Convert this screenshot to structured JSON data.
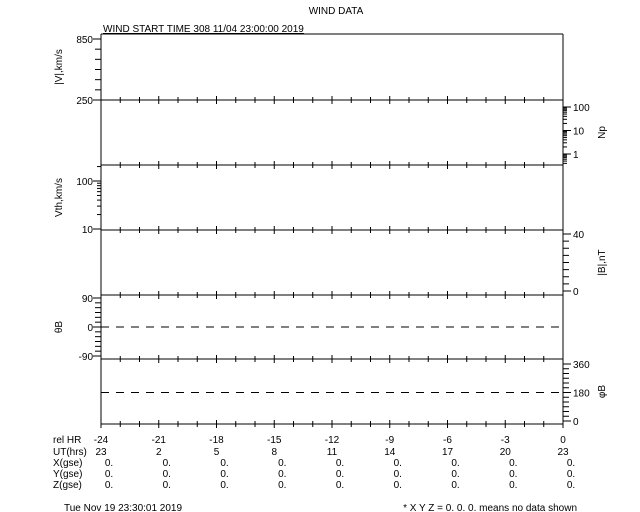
{
  "title": "WIND DATA",
  "start_time_label": "WIND START TIME 308 11/04 23:00:00 2019",
  "footer_timestamp": "Tue Nov 19 23:30:01 2019",
  "footer_note": "* X Y Z = 0. 0. 0. means no data shown",
  "chart_data": [
    {
      "type": "line",
      "ylabel": "|V|,km/s",
      "axis_side": "left",
      "scale": "linear",
      "ylim": [
        250,
        850
      ],
      "tick_labels": [
        "850",
        "250"
      ],
      "tick_values": [
        850,
        250
      ],
      "minor_step": 100,
      "series": []
    },
    {
      "type": "line",
      "ylabel": "Np",
      "axis_side": "right",
      "scale": "log",
      "ylim": [
        1,
        100
      ],
      "tick_labels": [
        "100",
        "10",
        "1"
      ],
      "tick_values": [
        100,
        10,
        1
      ],
      "series": []
    },
    {
      "type": "line",
      "ylabel": "Vth,km/s",
      "axis_side": "left",
      "scale": "log",
      "ylim": [
        10,
        100
      ],
      "tick_labels": [
        "100",
        "10"
      ],
      "tick_values": [
        100,
        10
      ],
      "series": []
    },
    {
      "type": "line",
      "ylabel": "|B|,nT",
      "axis_side": "right",
      "scale": "linear",
      "ylim": [
        0,
        40
      ],
      "tick_labels": [
        "40",
        "0"
      ],
      "tick_values": [
        40,
        0
      ],
      "minor_step": 5,
      "series": []
    },
    {
      "type": "line",
      "ylabel": "θB",
      "axis_side": "left",
      "scale": "linear",
      "ylim": [
        -90,
        90
      ],
      "tick_labels": [
        "90",
        "0",
        "-90"
      ],
      "tick_values": [
        90,
        0,
        -90
      ],
      "minor_step": 15,
      "reference_line": 0,
      "series": []
    },
    {
      "type": "line",
      "ylabel": "φB",
      "axis_side": "right",
      "scale": "linear",
      "ylim": [
        0,
        360
      ],
      "tick_labels": [
        "360",
        "180",
        "0"
      ],
      "tick_values": [
        360,
        180,
        0
      ],
      "minor_step": 30,
      "reference_line": 180,
      "series": []
    }
  ],
  "x_axis": {
    "xlim": [
      -24,
      0
    ],
    "rows": [
      {
        "label": "rel HR",
        "values": [
          "-24",
          "-21",
          "-18",
          "-15",
          "-12",
          "-9",
          "-6",
          "-3",
          "0"
        ]
      },
      {
        "label": "UT(hrs)",
        "values": [
          "23",
          "2",
          "5",
          "8",
          "11",
          "14",
          "17",
          "20",
          "23"
        ]
      },
      {
        "label": "X(gse)",
        "values": [
          "0.",
          "0.",
          "0.",
          "0.",
          "0.",
          "0.",
          "0.",
          "0.",
          "0."
        ]
      },
      {
        "label": "Y(gse)",
        "values": [
          "0.",
          "0.",
          "0.",
          "0.",
          "0.",
          "0.",
          "0.",
          "0.",
          "0."
        ]
      },
      {
        "label": "Z(gse)",
        "values": [
          "0.",
          "0.",
          "0.",
          "0.",
          "0.",
          "0.",
          "0.",
          "0.",
          "0."
        ]
      }
    ]
  }
}
